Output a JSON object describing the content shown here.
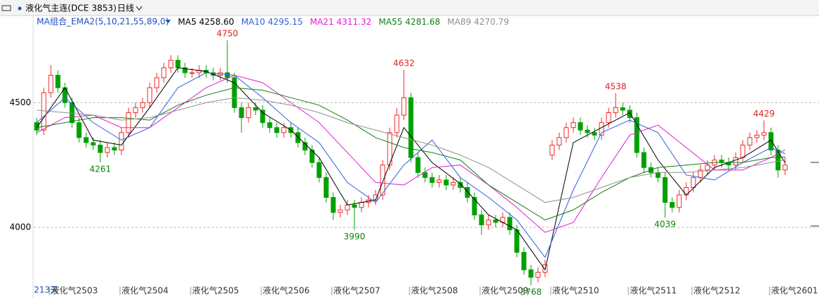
{
  "chart_data": {
    "type": "candlestick",
    "title": "液化气主连(DCE 3853)",
    "period": "日线",
    "indicator": "MA组合_EMA2(5,10,21,55,89,0)",
    "day_count": "213天",
    "categories": [
      null,
      null,
      "液化气2503",
      null,
      null,
      null,
      null,
      null,
      null,
      null,
      null,
      null,
      "液化气2504",
      null,
      null,
      null,
      null,
      null,
      null,
      null,
      null,
      null,
      "液化气2505",
      null,
      null,
      null,
      null,
      null,
      null,
      null,
      null,
      null,
      "液化气2506",
      null,
      null,
      null,
      null,
      null,
      null,
      null,
      null,
      null,
      "液化气2507",
      null,
      null,
      null,
      null,
      null,
      null,
      null,
      null,
      null,
      null,
      "液化气2508",
      null,
      null,
      null,
      null,
      null,
      null,
      null,
      null,
      null,
      "液化气2509",
      null,
      null,
      null,
      null,
      null,
      null,
      null,
      null,
      null,
      "液化气2510",
      null,
      null,
      null,
      null,
      null,
      null,
      null,
      null,
      null,
      null,
      "液化气2511",
      null,
      null,
      null,
      null,
      null,
      null,
      null,
      null,
      "液化气2512",
      null,
      null,
      null,
      null,
      null,
      null,
      null,
      null,
      null,
      null,
      "液化气2601",
      null,
      null
    ],
    "open": [
      4420,
      4390,
      4540,
      4610,
      4560,
      4500,
      4420,
      4360,
      4340,
      4330,
      4300,
      4320,
      4310,
      4380,
      4460,
      4480,
      4500,
      4560,
      4600,
      4640,
      4670,
      4640,
      4620,
      4620,
      4630,
      4620,
      4610,
      4620,
      4600,
      4480,
      4440,
      4480,
      4470,
      4420,
      4400,
      4380,
      4400,
      4380,
      4340,
      4310,
      4260,
      4200,
      4120,
      4060,
      4070,
      4090,
      4080,
      4100,
      4110,
      4130,
      4250,
      4380,
      4450,
      4520,
      4280,
      4220,
      4200,
      4180,
      4190,
      4170,
      4180,
      4160,
      4120,
      4050,
      4010,
      4030,
      4020,
      4040,
      3990,
      3900,
      3830,
      3800,
      3820,
      4290,
      4330,
      4360,
      4400,
      4420,
      4390,
      4380,
      4370,
      4420,
      4460,
      4480,
      4470,
      4440,
      4300,
      4240,
      4220,
      4200,
      4100,
      4080,
      4130,
      4160,
      4200,
      4230,
      4250,
      4270,
      4260,
      4250,
      4280,
      4330,
      4360,
      4370,
      4380,
      4310,
      4230
    ],
    "close": [
      4390,
      4540,
      4610,
      4560,
      4500,
      4420,
      4360,
      4340,
      4330,
      4300,
      4320,
      4310,
      4380,
      4460,
      4480,
      4500,
      4560,
      4600,
      4640,
      4670,
      4640,
      4620,
      4620,
      4630,
      4620,
      4610,
      4620,
      4600,
      4480,
      4440,
      4480,
      4470,
      4420,
      4400,
      4380,
      4400,
      4380,
      4340,
      4310,
      4260,
      4200,
      4120,
      4060,
      4070,
      4090,
      4080,
      4100,
      4110,
      4130,
      4250,
      4380,
      4450,
      4520,
      4280,
      4220,
      4200,
      4180,
      4190,
      4170,
      4180,
      4160,
      4120,
      4050,
      4010,
      4030,
      4020,
      4040,
      3990,
      3900,
      3830,
      3800,
      3820,
      3850,
      4330,
      4360,
      4400,
      4420,
      4390,
      4380,
      4370,
      4420,
      4460,
      4480,
      4470,
      4440,
      4300,
      4240,
      4220,
      4200,
      4100,
      4080,
      4130,
      4160,
      4200,
      4230,
      4250,
      4270,
      4260,
      4250,
      4280,
      4330,
      4360,
      4370,
      4380,
      4310,
      4230,
      4250
    ],
    "high": [
      4440,
      4560,
      4650,
      4630,
      4580,
      4520,
      4440,
      4380,
      4360,
      4350,
      4340,
      4340,
      4400,
      4480,
      4500,
      4520,
      4580,
      4620,
      4660,
      4690,
      4690,
      4660,
      4640,
      4650,
      4650,
      4640,
      4640,
      4750,
      4620,
      4500,
      4500,
      4500,
      4490,
      4440,
      4420,
      4420,
      4420,
      4400,
      4360,
      4330,
      4280,
      4220,
      4140,
      4090,
      4110,
      4110,
      4120,
      4130,
      4150,
      4270,
      4400,
      4480,
      4632,
      4540,
      4300,
      4240,
      4220,
      4210,
      4210,
      4200,
      4200,
      4180,
      4140,
      4070,
      4050,
      4050,
      4060,
      4060,
      4010,
      3920,
      3850,
      3840,
      3870,
      4350,
      4380,
      4420,
      4440,
      4440,
      4410,
      4400,
      4440,
      4480,
      4538,
      4500,
      4490,
      4460,
      4320,
      4260,
      4240,
      4220,
      4120,
      4150,
      4180,
      4220,
      4250,
      4270,
      4290,
      4290,
      4280,
      4300,
      4350,
      4380,
      4390,
      4429,
      4400,
      4330,
      4280
    ],
    "low": [
      4370,
      4370,
      4520,
      4540,
      4480,
      4400,
      4340,
      4320,
      4310,
      4261,
      4280,
      4290,
      4290,
      4360,
      4440,
      4460,
      4480,
      4540,
      4580,
      4620,
      4620,
      4600,
      4600,
      4600,
      4600,
      4590,
      4590,
      4580,
      4460,
      4380,
      4420,
      4450,
      4400,
      4380,
      4360,
      4360,
      4360,
      4320,
      4290,
      4240,
      4180,
      4100,
      4030,
      4040,
      4050,
      3990,
      4060,
      4080,
      4090,
      4110,
      4230,
      4360,
      4430,
      4260,
      4200,
      4180,
      4160,
      4160,
      4150,
      4150,
      4140,
      4100,
      4030,
      3970,
      3990,
      4000,
      4000,
      3970,
      3880,
      3810,
      3768,
      3780,
      3800,
      4270,
      4310,
      4340,
      4380,
      4370,
      4360,
      4350,
      4350,
      4400,
      4440,
      4450,
      4420,
      4280,
      4220,
      4200,
      4180,
      4039,
      4060,
      4060,
      4110,
      4140,
      4180,
      4210,
      4230,
      4240,
      4230,
      4230,
      4260,
      4310,
      4340,
      4350,
      4290,
      4200,
      4210
    ],
    "up_color": "#f02828",
    "down_color": "#00a000",
    "peak_labels": [
      27,
      52,
      82,
      103
    ],
    "trough_labels": [
      9,
      45,
      70,
      89
    ],
    "series": [
      {
        "name": "MA5",
        "color": "#000000",
        "value_label": "4258.60",
        "x": [
          0,
          4,
          8,
          12,
          16,
          20,
          24,
          28,
          32,
          36,
          40,
          44,
          48,
          52,
          56,
          60,
          64,
          68,
          72,
          76,
          80,
          84,
          88,
          92,
          96,
          100,
          104,
          106
        ],
        "values": [
          4400,
          4560,
          4350,
          4330,
          4480,
          4640,
          4625,
          4580,
          4460,
          4390,
          4280,
          4090,
          4110,
          4400,
          4260,
          4175,
          4050,
          3990,
          3830,
          4340,
          4400,
          4460,
          4270,
          4130,
          4240,
          4280,
          4350,
          4258.6
        ]
      },
      {
        "name": "MA10",
        "color": "#3060e0",
        "value_label": "4295.15",
        "x": [
          0,
          4,
          8,
          12,
          16,
          20,
          24,
          28,
          32,
          36,
          40,
          44,
          48,
          52,
          56,
          60,
          64,
          68,
          72,
          76,
          80,
          84,
          88,
          92,
          96,
          100,
          104,
          106
        ],
        "values": [
          4420,
          4520,
          4420,
          4350,
          4400,
          4560,
          4620,
          4610,
          4520,
          4420,
          4340,
          4180,
          4100,
          4250,
          4350,
          4200,
          4120,
          4030,
          3880,
          4150,
          4380,
          4430,
          4380,
          4210,
          4190,
          4260,
          4320,
          4295.15
        ]
      },
      {
        "name": "MA21",
        "color": "#e020d0",
        "value_label": "4311.32",
        "x": [
          0,
          4,
          8,
          12,
          16,
          20,
          24,
          28,
          32,
          36,
          40,
          44,
          48,
          52,
          56,
          60,
          64,
          68,
          72,
          76,
          80,
          84,
          88,
          92,
          96,
          100,
          104,
          106
        ],
        "values": [
          4380,
          4440,
          4450,
          4400,
          4400,
          4480,
          4560,
          4610,
          4580,
          4500,
          4420,
          4300,
          4180,
          4170,
          4240,
          4250,
          4170,
          4080,
          3980,
          4020,
          4200,
          4370,
          4410,
          4320,
          4230,
          4230,
          4280,
          4311.32
        ]
      },
      {
        "name": "MA55",
        "color": "#108010",
        "value_label": "4281.68",
        "x": [
          0,
          4,
          8,
          12,
          16,
          20,
          24,
          28,
          32,
          36,
          40,
          44,
          48,
          52,
          56,
          60,
          64,
          68,
          72,
          76,
          80,
          84,
          88,
          92,
          96,
          100,
          104,
          106
        ],
        "values": [
          4400,
          4420,
          4440,
          4440,
          4430,
          4490,
          4530,
          4560,
          4550,
          4520,
          4490,
          4430,
          4360,
          4320,
          4300,
          4270,
          4170,
          4100,
          4030,
          4070,
          4140,
          4200,
          4240,
          4250,
          4260,
          4260,
          4280,
          4281.68
        ]
      },
      {
        "name": "MA89",
        "color": "#909090",
        "value_label": "4270.79",
        "x": [
          0,
          4,
          8,
          12,
          16,
          20,
          24,
          28,
          32,
          36,
          40,
          44,
          48,
          52,
          56,
          60,
          64,
          68,
          72,
          76,
          80,
          84,
          88,
          92,
          96,
          100,
          104,
          106
        ],
        "values": [
          4470,
          4460,
          4450,
          4430,
          4440,
          4470,
          4500,
          4520,
          4510,
          4490,
          4460,
          4420,
          4390,
          4360,
          4330,
          4290,
          4240,
          4170,
          4100,
          4120,
          4160,
          4200,
          4220,
          4220,
          4230,
          4240,
          4260,
          4270.79
        ]
      }
    ],
    "ylim": [
      3765,
      4855
    ],
    "yticks": [
      4000,
      4500
    ],
    "grid": true
  }
}
